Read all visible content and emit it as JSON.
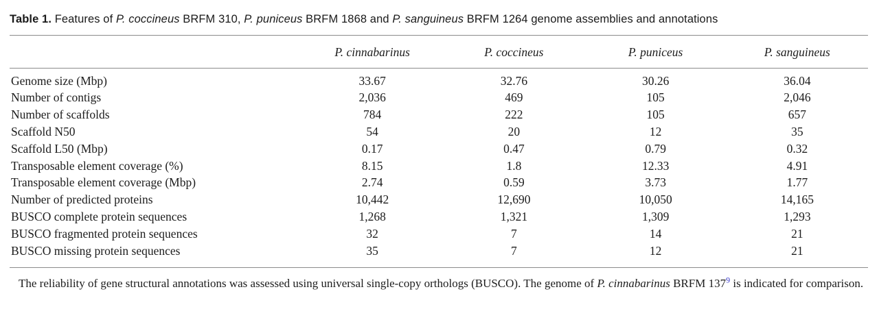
{
  "title": {
    "segments": [
      {
        "text": "Table 1."
      },
      {
        "text": " Features of "
      },
      {
        "text": "P. coccineus"
      },
      {
        "text": " BRFM 310, "
      },
      {
        "text": "P. puniceus"
      },
      {
        "text": " BRFM 1868 and "
      },
      {
        "text": "P. sanguineus"
      },
      {
        "text": " BRFM 1264 genome assemblies and annotations"
      }
    ]
  },
  "table": {
    "columns": [
      "P. cinnabarinus",
      "P. coccineus",
      "P. puniceus",
      "P. sanguineus"
    ],
    "rows": [
      {
        "label": "Genome size (Mbp)",
        "values": [
          "33.67",
          "32.76",
          "30.26",
          "36.04"
        ]
      },
      {
        "label": "Number of contigs",
        "values": [
          "2,036",
          "469",
          "105",
          "2,046"
        ]
      },
      {
        "label": "Number of scaffolds",
        "values": [
          "784",
          "222",
          "105",
          "657"
        ]
      },
      {
        "label": "Scaffold N50",
        "values": [
          "54",
          "20",
          "12",
          "35"
        ]
      },
      {
        "label": "Scaffold L50 (Mbp)",
        "values": [
          "0.17",
          "0.47",
          "0.79",
          "0.32"
        ]
      },
      {
        "label": "Transposable element coverage (%)",
        "values": [
          "8.15",
          "1.8",
          "12.33",
          "4.91"
        ]
      },
      {
        "label": "Transposable element coverage (Mbp)",
        "values": [
          "2.74",
          "0.59",
          "3.73",
          "1.77"
        ]
      },
      {
        "label": "Number of predicted proteins",
        "values": [
          "10,442",
          "12,690",
          "10,050",
          "14,165"
        ]
      },
      {
        "label": "BUSCO complete protein sequences",
        "values": [
          "1,268",
          "1,321",
          "1,309",
          "1,293"
        ]
      },
      {
        "label": "BUSCO fragmented protein sequences",
        "values": [
          "32",
          "7",
          "14",
          "21"
        ]
      },
      {
        "label": "BUSCO missing protein sequences",
        "values": [
          "35",
          "7",
          "12",
          "21"
        ]
      }
    ]
  },
  "footnote": {
    "segments": [
      {
        "text": "The reliability of gene structural annotations was assessed using universal single-copy orthologs (BUSCO). The genome of "
      },
      {
        "text": "P. cinnabarinus"
      },
      {
        "text": " BRFM 137"
      },
      {
        "text": "9"
      },
      {
        "text": " is indicated for comparison."
      }
    ]
  },
  "colors": {
    "text": "#1c1c1c",
    "rule": "#8a8a8a",
    "citation_link": "#3a3acc"
  }
}
